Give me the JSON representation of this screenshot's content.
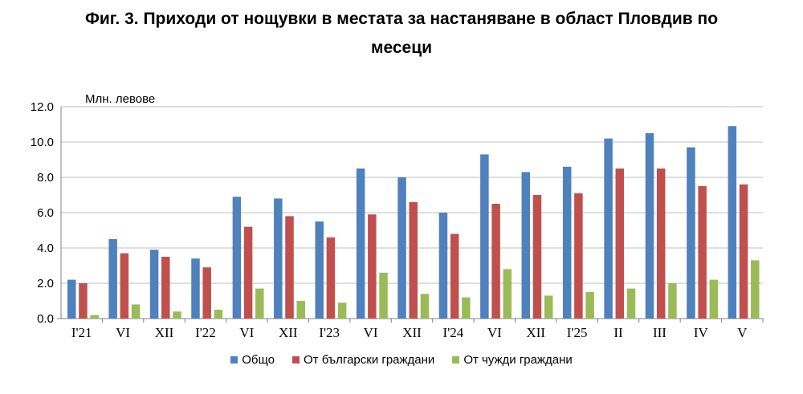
{
  "title_line1": "Фиг. 3. Приходи от нощувки в местата за настаняване в област Пловдив по",
  "title_line2": "месеци",
  "chart_data": {
    "type": "bar",
    "title": "Фиг. 3. Приходи от нощувки в местата за настаняване в област Пловдив по месеци",
    "ylabel": "Млн. левове",
    "xlabel": "",
    "ylim": [
      0,
      12
    ],
    "yticks": [
      "0.0",
      "2.0",
      "4.0",
      "6.0",
      "8.0",
      "10.0",
      "12.0"
    ],
    "grid": true,
    "legend": "bottom",
    "categories": [
      "I'21",
      "VI",
      "XII",
      "I'22",
      "VI",
      "XII",
      "I'23",
      "VI",
      "XII",
      "I'24",
      "VI",
      "XII",
      "I'25",
      "II",
      "III",
      "IV",
      "V"
    ],
    "series": [
      {
        "name": "Общо",
        "color": "#4F81BD",
        "values": [
          2.2,
          4.5,
          3.9,
          3.4,
          6.9,
          6.8,
          5.5,
          8.5,
          8.0,
          6.0,
          9.3,
          8.3,
          8.6,
          10.2,
          10.5,
          9.7,
          10.9
        ]
      },
      {
        "name": "От български граждани",
        "color": "#C0504D",
        "values": [
          2.0,
          3.7,
          3.5,
          2.9,
          5.2,
          5.8,
          4.6,
          5.9,
          6.6,
          4.8,
          6.5,
          7.0,
          7.1,
          8.5,
          8.5,
          7.5,
          7.6
        ]
      },
      {
        "name": "От чужди граждани",
        "color": "#9BBB59",
        "values": [
          0.2,
          0.8,
          0.4,
          0.5,
          1.7,
          1.0,
          0.9,
          2.6,
          1.4,
          1.2,
          2.8,
          1.3,
          1.5,
          1.7,
          2.0,
          2.2,
          3.3
        ]
      }
    ]
  }
}
